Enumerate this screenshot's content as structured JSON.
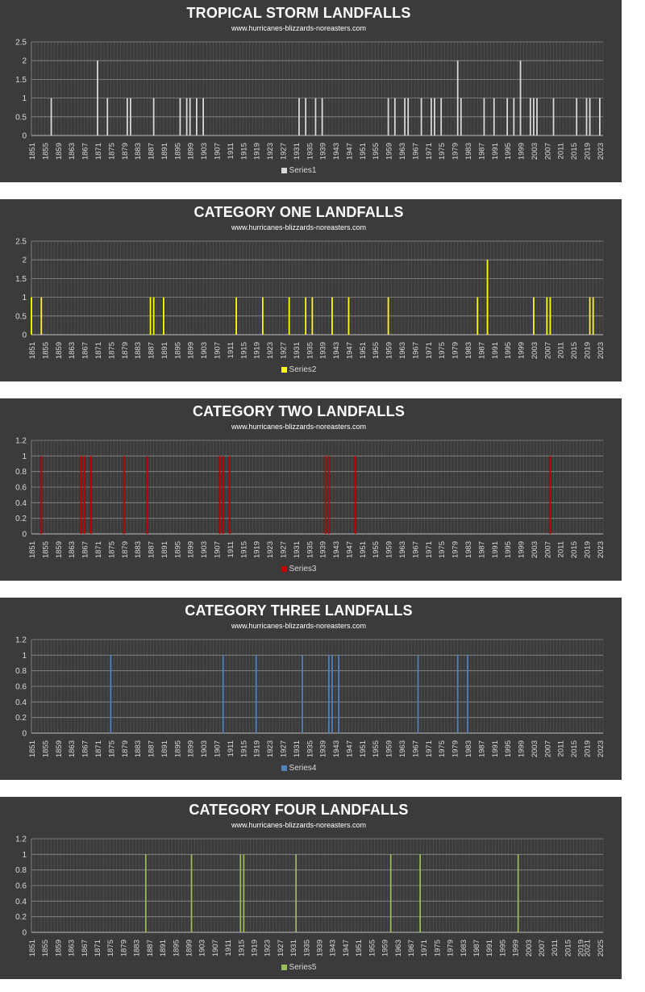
{
  "chart_data": [
    {
      "type": "bar",
      "title": "TROPICAL STORM LANDFALLS",
      "subtitle": "www.hurricanes-blizzards-noreasters.com",
      "series_name": "Series1",
      "color": "#d9d9d9",
      "ylim": [
        0,
        2.5
      ],
      "yticks": [
        "0",
        "0.5",
        "1",
        "1.5",
        "2",
        "2.5"
      ],
      "xlim": [
        1851,
        2024
      ],
      "xticks": [
        "1851",
        "1855",
        "1859",
        "1863",
        "1867",
        "1871",
        "1875",
        "1879",
        "1883",
        "1887",
        "1891",
        "1895",
        "1899",
        "1903",
        "1907",
        "1911",
        "1915",
        "1919",
        "1923",
        "1927",
        "1931",
        "1935",
        "1939",
        "1943",
        "1947",
        "1951",
        "1955",
        "1959",
        "1963",
        "1967",
        "1971",
        "1975",
        "1979",
        "1983",
        "1987",
        "1991",
        "1995",
        "1999",
        "2003",
        "2007",
        "2011",
        "2015",
        "2019",
        "2023"
      ],
      "points": [
        {
          "year": 1857,
          "value": 1
        },
        {
          "year": 1871,
          "value": 2
        },
        {
          "year": 1874,
          "value": 1
        },
        {
          "year": 1880,
          "value": 1
        },
        {
          "year": 1881,
          "value": 1
        },
        {
          "year": 1888,
          "value": 1
        },
        {
          "year": 1896,
          "value": 1
        },
        {
          "year": 1898,
          "value": 1
        },
        {
          "year": 1899,
          "value": 1
        },
        {
          "year": 1901,
          "value": 1
        },
        {
          "year": 1903,
          "value": 1
        },
        {
          "year": 1932,
          "value": 1
        },
        {
          "year": 1934,
          "value": 1
        },
        {
          "year": 1937,
          "value": 1
        },
        {
          "year": 1939,
          "value": 1
        },
        {
          "year": 1959,
          "value": 1
        },
        {
          "year": 1961,
          "value": 1
        },
        {
          "year": 1964,
          "value": 1
        },
        {
          "year": 1965,
          "value": 1
        },
        {
          "year": 1969,
          "value": 1
        },
        {
          "year": 1972,
          "value": 1
        },
        {
          "year": 1973,
          "value": 1
        },
        {
          "year": 1975,
          "value": 1
        },
        {
          "year": 1980,
          "value": 2
        },
        {
          "year": 1981,
          "value": 1
        },
        {
          "year": 1988,
          "value": 1
        },
        {
          "year": 1991,
          "value": 1
        },
        {
          "year": 1995,
          "value": 1
        },
        {
          "year": 1997,
          "value": 1
        },
        {
          "year": 1999,
          "value": 2
        },
        {
          "year": 2002,
          "value": 1
        },
        {
          "year": 2003,
          "value": 1
        },
        {
          "year": 2004,
          "value": 1
        },
        {
          "year": 2009,
          "value": 1
        },
        {
          "year": 2016,
          "value": 1
        },
        {
          "year": 2019,
          "value": 1
        },
        {
          "year": 2020,
          "value": 1
        },
        {
          "year": 2023,
          "value": 1
        }
      ]
    },
    {
      "type": "bar",
      "title": "CATEGORY ONE LANDFALLS",
      "subtitle": "www.hurricanes-blizzards-noreasters.com",
      "series_name": "Series2",
      "color": "#ffff00",
      "ylim": [
        0,
        2.5
      ],
      "yticks": [
        "0",
        "0.5",
        "1",
        "1.5",
        "2",
        "2.5"
      ],
      "xlim": [
        1851,
        2024
      ],
      "xticks": [
        "1851",
        "1855",
        "1859",
        "1863",
        "1867",
        "1871",
        "1875",
        "1879",
        "1883",
        "1887",
        "1891",
        "1895",
        "1899",
        "1903",
        "1907",
        "1911",
        "1915",
        "1919",
        "1923",
        "1927",
        "1931",
        "1935",
        "1939",
        "1943",
        "1947",
        "1951",
        "1955",
        "1959",
        "1963",
        "1967",
        "1971",
        "1975",
        "1979",
        "1983",
        "1987",
        "1991",
        "1995",
        "1999",
        "2003",
        "2007",
        "2011",
        "2015",
        "2019",
        "2023"
      ],
      "points": [
        {
          "year": 1851,
          "value": 1
        },
        {
          "year": 1854,
          "value": 1
        },
        {
          "year": 1887,
          "value": 1
        },
        {
          "year": 1888,
          "value": 1
        },
        {
          "year": 1891,
          "value": 1
        },
        {
          "year": 1913,
          "value": 1
        },
        {
          "year": 1921,
          "value": 1
        },
        {
          "year": 1929,
          "value": 1
        },
        {
          "year": 1934,
          "value": 1
        },
        {
          "year": 1936,
          "value": 1
        },
        {
          "year": 1942,
          "value": 1
        },
        {
          "year": 1947,
          "value": 1
        },
        {
          "year": 1959,
          "value": 1
        },
        {
          "year": 1986,
          "value": 1
        },
        {
          "year": 1989,
          "value": 2
        },
        {
          "year": 2003,
          "value": 1
        },
        {
          "year": 2007,
          "value": 1
        },
        {
          "year": 2008,
          "value": 1
        },
        {
          "year": 2020,
          "value": 1
        },
        {
          "year": 2021,
          "value": 1
        }
      ]
    },
    {
      "type": "bar",
      "title": "CATEGORY TWO LANDFALLS",
      "subtitle": "www.hurricanes-blizzards-noreasters.com",
      "series_name": "Series3",
      "color": "#c00000",
      "ylim": [
        0,
        1.2
      ],
      "yticks": [
        "0",
        "0.2",
        "0.4",
        "0.6",
        "0.8",
        "1",
        "1.2"
      ],
      "xlim": [
        1851,
        2024
      ],
      "xticks": [
        "1851",
        "1855",
        "1859",
        "1863",
        "1867",
        "1871",
        "1875",
        "1879",
        "1883",
        "1887",
        "1891",
        "1895",
        "1899",
        "1903",
        "1907",
        "1911",
        "1915",
        "1919",
        "1923",
        "1927",
        "1931",
        "1935",
        "1939",
        "1943",
        "1947",
        "1951",
        "1955",
        "1959",
        "1963",
        "1967",
        "1971",
        "1975",
        "1979",
        "1983",
        "1987",
        "1991",
        "1995",
        "1999",
        "2003",
        "2007",
        "2011",
        "2015",
        "2019",
        "2023"
      ],
      "points": [
        {
          "year": 1854,
          "value": 1
        },
        {
          "year": 1866,
          "value": 1
        },
        {
          "year": 1867,
          "value": 1
        },
        {
          "year": 1869,
          "value": 1
        },
        {
          "year": 1879,
          "value": 1
        },
        {
          "year": 1886,
          "value": 1
        },
        {
          "year": 1908,
          "value": 1
        },
        {
          "year": 1909,
          "value": 1
        },
        {
          "year": 1911,
          "value": 1
        },
        {
          "year": 1940,
          "value": 1
        },
        {
          "year": 1941,
          "value": 1
        },
        {
          "year": 1949,
          "value": 1
        },
        {
          "year": 2008,
          "value": 1
        }
      ]
    },
    {
      "type": "bar",
      "title": "CATEGORY THREE LANDFALLS",
      "subtitle": "www.hurricanes-blizzards-noreasters.com",
      "series_name": "Series4",
      "color": "#4f81bd",
      "ylim": [
        0,
        1.2
      ],
      "yticks": [
        "0",
        "0.2",
        "0.4",
        "0.6",
        "0.8",
        "1",
        "1.2"
      ],
      "xlim": [
        1851,
        2024
      ],
      "xticks": [
        "1851",
        "1855",
        "1859",
        "1863",
        "1867",
        "1871",
        "1875",
        "1879",
        "1883",
        "1887",
        "1891",
        "1895",
        "1899",
        "1903",
        "1907",
        "1911",
        "1915",
        "1919",
        "1923",
        "1927",
        "1931",
        "1935",
        "1939",
        "1943",
        "1947",
        "1951",
        "1955",
        "1959",
        "1963",
        "1967",
        "1971",
        "1975",
        "1979",
        "1983",
        "1987",
        "1991",
        "1995",
        "1999",
        "2003",
        "2007",
        "2011",
        "2015",
        "2019",
        "2023"
      ],
      "points": [
        {
          "year": 1875,
          "value": 1
        },
        {
          "year": 1909,
          "value": 1
        },
        {
          "year": 1919,
          "value": 1
        },
        {
          "year": 1933,
          "value": 1
        },
        {
          "year": 1941,
          "value": 1
        },
        {
          "year": 1942,
          "value": 1
        },
        {
          "year": 1944,
          "value": 1
        },
        {
          "year": 1968,
          "value": 1
        },
        {
          "year": 1980,
          "value": 1
        },
        {
          "year": 1983,
          "value": 1
        }
      ]
    },
    {
      "type": "bar",
      "title": "CATEGORY FOUR LANDFALLS",
      "subtitle": "www.hurricanes-blizzards-noreasters.com",
      "series_name": "Series5",
      "color": "#9bbb59",
      "ylim": [
        0,
        1.2
      ],
      "yticks": [
        "0",
        "0.2",
        "0.4",
        "0.6",
        "0.8",
        "1",
        "1.2"
      ],
      "xlim": [
        1851,
        2026
      ],
      "xticks": [
        "1851",
        "1855",
        "1859",
        "1863",
        "1867",
        "1871",
        "1875",
        "1879",
        "1883",
        "1887",
        "1891",
        "1895",
        "1899",
        "1903",
        "1907",
        "1911",
        "1915",
        "1919",
        "1923",
        "1927",
        "1931",
        "1935",
        "1939",
        "1943",
        "1947",
        "1951",
        "1955",
        "1959",
        "1963",
        "1967",
        "1971",
        "1975",
        "1979",
        "1983",
        "1987",
        "1991",
        "1995",
        "1999",
        "2003",
        "2007",
        "2011",
        "2015",
        "2019",
        "2021",
        "2025"
      ],
      "points": [
        {
          "year": 1886,
          "value": 1
        },
        {
          "year": 1900,
          "value": 1
        },
        {
          "year": 1915,
          "value": 1
        },
        {
          "year": 1916,
          "value": 1
        },
        {
          "year": 1932,
          "value": 1
        },
        {
          "year": 1961,
          "value": 1
        },
        {
          "year": 1970,
          "value": 1
        },
        {
          "year": 2000,
          "value": 1
        }
      ]
    }
  ]
}
